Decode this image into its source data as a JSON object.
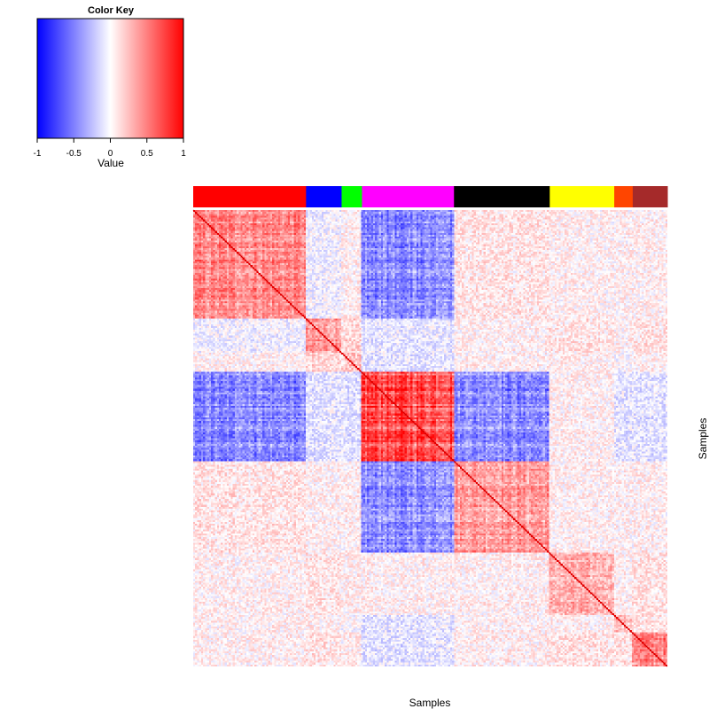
{
  "color_key": {
    "title": "Color Key",
    "xlabel": "Value",
    "ticks": [
      "-1",
      "-0.5",
      "0",
      "0.5",
      "1"
    ],
    "tick_values": [
      -1,
      -0.5,
      0,
      0.5,
      1
    ],
    "range": [
      -1,
      1
    ],
    "low_color": "#0000ff",
    "mid_color": "#ffffff",
    "high_color": "#ff0000"
  },
  "chart_data": {
    "type": "heatmap",
    "title": "",
    "xlabel": "Samples",
    "ylabel": "Samples",
    "value_range": [
      -1,
      1
    ],
    "diagonal_value": 1,
    "groups": [
      {
        "color": "#ff0000",
        "share": 0.238
      },
      {
        "color": "#0000ff",
        "share": 0.075
      },
      {
        "color": "#00ff00",
        "share": 0.043
      },
      {
        "color": "#ff00ff",
        "share": 0.194
      },
      {
        "color": "#000000",
        "share": 0.202
      },
      {
        "color": "#ffff00",
        "share": 0.136
      },
      {
        "color": "#ff4500",
        "share": 0.039
      },
      {
        "color": "#a52a2a",
        "share": 0.073
      }
    ],
    "block_mean_correlation": [
      [
        0.45,
        -0.05,
        0.05,
        -0.45,
        0.1,
        0.05,
        0.05,
        0.05
      ],
      [
        -0.05,
        0.4,
        0.15,
        -0.1,
        0.05,
        0.1,
        0.05,
        0.1
      ],
      [
        0.05,
        0.15,
        0.2,
        -0.1,
        0.05,
        0.05,
        0.0,
        0.05
      ],
      [
        -0.45,
        -0.1,
        -0.1,
        0.7,
        -0.45,
        0.05,
        -0.1,
        -0.1
      ],
      [
        0.1,
        0.05,
        0.05,
        -0.45,
        0.4,
        0.05,
        0.05,
        0.05
      ],
      [
        0.05,
        0.1,
        0.05,
        0.05,
        0.05,
        0.3,
        0.05,
        0.1
      ],
      [
        0.05,
        0.05,
        0.0,
        -0.1,
        0.05,
        0.05,
        0.25,
        0.1
      ],
      [
        0.05,
        0.1,
        0.05,
        -0.1,
        0.05,
        0.1,
        0.1,
        0.45
      ]
    ]
  }
}
